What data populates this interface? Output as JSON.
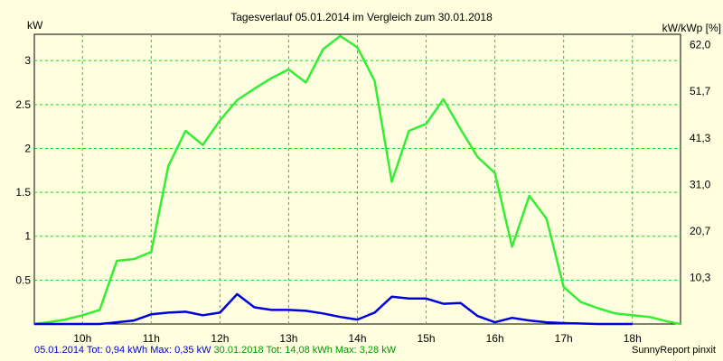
{
  "chart_data": {
    "type": "line",
    "title": "Tagesverlauf 05.01.2014 im Vergleich zum 30.01.2018",
    "y_left_label": "kW",
    "y_right_label": "kW/kWp [%]",
    "xlim": [
      9.3,
      18.7
    ],
    "ylim": [
      0,
      3.3
    ],
    "x_ticks": [
      {
        "value": 10,
        "label": "10h"
      },
      {
        "value": 11,
        "label": "11h"
      },
      {
        "value": 12,
        "label": "12h"
      },
      {
        "value": 13,
        "label": "13h"
      },
      {
        "value": 14,
        "label": "14h"
      },
      {
        "value": 15,
        "label": "15h"
      },
      {
        "value": 16,
        "label": "16h"
      },
      {
        "value": 17,
        "label": "17h"
      },
      {
        "value": 18,
        "label": "18h"
      }
    ],
    "y_left_ticks": [
      {
        "value": 0.5,
        "label": "0.5"
      },
      {
        "value": 1,
        "label": "1"
      },
      {
        "value": 1.5,
        "label": "1.5"
      },
      {
        "value": 2,
        "label": "2"
      },
      {
        "value": 2.5,
        "label": "2.5"
      },
      {
        "value": 3,
        "label": "3"
      }
    ],
    "y_right_ticks": [
      {
        "value": 0.53,
        "label": "10,3"
      },
      {
        "value": 1.06,
        "label": "20,7"
      },
      {
        "value": 1.59,
        "label": "31,0"
      },
      {
        "value": 2.12,
        "label": "41,3"
      },
      {
        "value": 2.65,
        "label": "51,7"
      },
      {
        "value": 3.18,
        "label": "62,0"
      }
    ],
    "grid": true,
    "series": [
      {
        "color": "#33ee33",
        "x": [
          9.3,
          9.5,
          9.75,
          10.0,
          10.25,
          10.5,
          10.75,
          11.0,
          11.25,
          11.5,
          11.75,
          12.0,
          12.25,
          12.5,
          12.75,
          13.0,
          13.25,
          13.5,
          13.75,
          14.0,
          14.25,
          14.5,
          14.75,
          15.0,
          15.25,
          15.5,
          15.75,
          16.0,
          16.25,
          16.5,
          16.75,
          17.0,
          17.25,
          17.5,
          17.75,
          18.0,
          18.25,
          18.5,
          18.7
        ],
        "y": [
          0.0,
          0.02,
          0.05,
          0.1,
          0.16,
          0.72,
          0.74,
          0.82,
          1.8,
          2.2,
          2.04,
          2.32,
          2.55,
          2.68,
          2.8,
          2.9,
          2.75,
          3.13,
          3.28,
          3.15,
          2.77,
          1.62,
          2.2,
          2.28,
          2.56,
          2.22,
          1.9,
          1.72,
          0.88,
          1.46,
          1.2,
          0.42,
          0.25,
          0.18,
          0.12,
          0.1,
          0.08,
          0.03,
          0.0
        ]
      },
      {
        "color": "#0000dd",
        "x": [
          9.3,
          9.75,
          10.0,
          10.25,
          10.5,
          10.75,
          11.0,
          11.25,
          11.5,
          11.75,
          12.0,
          12.25,
          12.5,
          12.75,
          13.0,
          13.25,
          13.5,
          13.75,
          14.0,
          14.25,
          14.5,
          14.75,
          15.0,
          15.25,
          15.5,
          15.75,
          16.0,
          16.25,
          16.5,
          16.75,
          17.0,
          17.5,
          18.0
        ],
        "y": [
          0.0,
          0.0,
          0.0,
          0.0,
          0.02,
          0.04,
          0.11,
          0.13,
          0.14,
          0.1,
          0.13,
          0.34,
          0.19,
          0.16,
          0.16,
          0.15,
          0.12,
          0.08,
          0.05,
          0.13,
          0.31,
          0.29,
          0.29,
          0.23,
          0.24,
          0.09,
          0.02,
          0.07,
          0.04,
          0.02,
          0.01,
          0.0,
          0.0
        ]
      }
    ]
  },
  "footer": {
    "series1_text": "05.01.2014 Tot: 0,94 kWh Max: 0,35 kW",
    "series2_text": "30.01.2018 Tot: 14,08 kWh Max: 3,28 kW",
    "credit": "SunnyReport pinxit"
  },
  "colors": {
    "background": "#ffffe0",
    "grid": "#22cc22",
    "series1_footer": "#0000cc",
    "series2_footer": "#009900"
  }
}
